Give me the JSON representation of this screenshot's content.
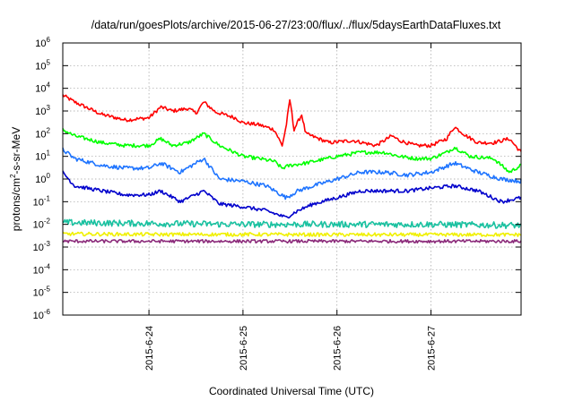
{
  "chart_data": {
    "type": "line",
    "title": "/data/run/goesPlots/archive/2015-06-27/23:00/flux/../flux/5daysEarthDataFluxes.txt",
    "xlabel": "Coordinated Universal Time (UTC)",
    "ylabel": {
      "pre": "protons/cm",
      "sup": "2",
      "post": "-s-sr-MeV"
    },
    "yscale": "log",
    "ylim_exp": [
      -6,
      6
    ],
    "ytick_base": "10",
    "yticks_exp": [
      "-6",
      "-5",
      "-4",
      "-3",
      "-2",
      "-1",
      "0",
      "1",
      "2",
      "3",
      "4",
      "5",
      "6"
    ],
    "xlim": [
      "2015-06-23 02:00",
      "2015-06-27 23:00"
    ],
    "xticks": [
      {
        "label": "2015-6-24",
        "time": "2015-06-24 00:00"
      },
      {
        "label": "2015-6-25",
        "time": "2015-06-25 00:00"
      },
      {
        "label": "2015-6-26",
        "time": "2015-06-26 00:00"
      },
      {
        "label": "2015-6-27",
        "time": "2015-06-27 00:00"
      }
    ],
    "grid": true,
    "legend": "none",
    "series": [
      {
        "color": "#ff0000",
        "noise": 0.08,
        "points": [
          [
            "2015-06-23 02:00",
            5000
          ],
          [
            "2015-06-23 05:00",
            2500
          ],
          [
            "2015-06-23 12:00",
            700
          ],
          [
            "2015-06-23 18:00",
            400
          ],
          [
            "2015-06-24 00:00",
            500
          ],
          [
            "2015-06-24 03:00",
            1500
          ],
          [
            "2015-06-24 06:00",
            1000
          ],
          [
            "2015-06-24 10:00",
            1300
          ],
          [
            "2015-06-24 12:00",
            800
          ],
          [
            "2015-06-24 14:00",
            2500
          ],
          [
            "2015-06-24 17:00",
            900
          ],
          [
            "2015-06-24 22:00",
            500
          ],
          [
            "2015-06-25 00:00",
            300
          ],
          [
            "2015-06-25 04:00",
            250
          ],
          [
            "2015-06-25 08:00",
            150
          ],
          [
            "2015-06-25 10:00",
            30
          ],
          [
            "2015-06-25 11:00",
            200
          ],
          [
            "2015-06-25 12:00",
            3500
          ],
          [
            "2015-06-25 13:00",
            150
          ],
          [
            "2015-06-25 15:00",
            700
          ],
          [
            "2015-06-25 16:00",
            100
          ],
          [
            "2015-06-25 22:00",
            40
          ],
          [
            "2015-06-26 04:00",
            50
          ],
          [
            "2015-06-26 10:00",
            30
          ],
          [
            "2015-06-26 14:00",
            80
          ],
          [
            "2015-06-26 16:00",
            50
          ],
          [
            "2015-06-26 20:00",
            30
          ],
          [
            "2015-06-27 00:00",
            30
          ],
          [
            "2015-06-27 04:00",
            60
          ],
          [
            "2015-06-27 06:00",
            200
          ],
          [
            "2015-06-27 09:00",
            80
          ],
          [
            "2015-06-27 12:00",
            40
          ],
          [
            "2015-06-27 16:00",
            40
          ],
          [
            "2015-06-27 20:00",
            60
          ],
          [
            "2015-06-27 23:00",
            15
          ]
        ]
      },
      {
        "color": "#00ff00",
        "noise": 0.08,
        "points": [
          [
            "2015-06-23 02:00",
            150
          ],
          [
            "2015-06-23 05:00",
            80
          ],
          [
            "2015-06-23 12:00",
            40
          ],
          [
            "2015-06-23 18:00",
            30
          ],
          [
            "2015-06-24 00:00",
            30
          ],
          [
            "2015-06-24 03:00",
            60
          ],
          [
            "2015-06-24 06:00",
            30
          ],
          [
            "2015-06-24 10:00",
            40
          ],
          [
            "2015-06-24 14:00",
            100
          ],
          [
            "2015-06-24 18:00",
            30
          ],
          [
            "2015-06-25 00:00",
            10
          ],
          [
            "2015-06-25 04:00",
            8
          ],
          [
            "2015-06-25 08:00",
            6
          ],
          [
            "2015-06-25 10:00",
            3
          ],
          [
            "2015-06-25 12:00",
            4
          ],
          [
            "2015-06-25 16:00",
            5
          ],
          [
            "2015-06-26 00:00",
            10
          ],
          [
            "2015-06-26 06:00",
            15
          ],
          [
            "2015-06-26 12:00",
            15
          ],
          [
            "2015-06-26 16:00",
            10
          ],
          [
            "2015-06-26 20:00",
            8
          ],
          [
            "2015-06-27 00:00",
            8
          ],
          [
            "2015-06-27 04:00",
            15
          ],
          [
            "2015-06-27 06:00",
            25
          ],
          [
            "2015-06-27 10:00",
            10
          ],
          [
            "2015-06-27 16:00",
            8
          ],
          [
            "2015-06-27 20:00",
            2
          ],
          [
            "2015-06-27 23:00",
            4
          ]
        ]
      },
      {
        "color": "#1e74ff",
        "noise": 0.09,
        "points": [
          [
            "2015-06-23 02:00",
            20
          ],
          [
            "2015-06-23 05:00",
            8
          ],
          [
            "2015-06-23 12:00",
            4
          ],
          [
            "2015-06-23 18:00",
            3
          ],
          [
            "2015-06-24 00:00",
            3
          ],
          [
            "2015-06-24 03:00",
            5
          ],
          [
            "2015-06-24 08:00",
            2
          ],
          [
            "2015-06-24 14:00",
            8
          ],
          [
            "2015-06-24 18:00",
            1
          ],
          [
            "2015-06-25 00:00",
            0.8
          ],
          [
            "2015-06-25 06:00",
            0.5
          ],
          [
            "2015-06-25 11:00",
            0.15
          ],
          [
            "2015-06-25 14:00",
            0.3
          ],
          [
            "2015-06-25 18:00",
            0.5
          ],
          [
            "2015-06-26 00:00",
            1
          ],
          [
            "2015-06-26 06:00",
            2
          ],
          [
            "2015-06-26 12:00",
            2
          ],
          [
            "2015-06-26 18:00",
            1.5
          ],
          [
            "2015-06-27 00:00",
            2
          ],
          [
            "2015-06-27 06:00",
            5
          ],
          [
            "2015-06-27 12:00",
            2
          ],
          [
            "2015-06-27 18:00",
            1
          ],
          [
            "2015-06-27 23:00",
            0.8
          ]
        ]
      },
      {
        "color": "#0000cc",
        "noise": 0.08,
        "points": [
          [
            "2015-06-23 02:00",
            2
          ],
          [
            "2015-06-23 05:00",
            0.5
          ],
          [
            "2015-06-23 12:00",
            0.3
          ],
          [
            "2015-06-23 18:00",
            0.2
          ],
          [
            "2015-06-24 00:00",
            0.2
          ],
          [
            "2015-06-24 03:00",
            0.3
          ],
          [
            "2015-06-24 08:00",
            0.1
          ],
          [
            "2015-06-24 14:00",
            0.3
          ],
          [
            "2015-06-24 18:00",
            0.08
          ],
          [
            "2015-06-25 00:00",
            0.06
          ],
          [
            "2015-06-25 06:00",
            0.04
          ],
          [
            "2015-06-25 11:00",
            0.02
          ],
          [
            "2015-06-25 14:00",
            0.04
          ],
          [
            "2015-06-25 18:00",
            0.08
          ],
          [
            "2015-06-26 00:00",
            0.15
          ],
          [
            "2015-06-26 06:00",
            0.3
          ],
          [
            "2015-06-26 12:00",
            0.3
          ],
          [
            "2015-06-26 18:00",
            0.3
          ],
          [
            "2015-06-27 00:00",
            0.4
          ],
          [
            "2015-06-27 06:00",
            0.5
          ],
          [
            "2015-06-27 12:00",
            0.3
          ],
          [
            "2015-06-27 18:00",
            0.1
          ],
          [
            "2015-06-27 23:00",
            0.15
          ]
        ]
      },
      {
        "color": "#19c1a0",
        "noise": 0.14,
        "points": [
          [
            "2015-06-23 02:00",
            0.012
          ],
          [
            "2015-06-24 00:00",
            0.011
          ],
          [
            "2015-06-25 00:00",
            0.01
          ],
          [
            "2015-06-26 00:00",
            0.01
          ],
          [
            "2015-06-27 00:00",
            0.01
          ],
          [
            "2015-06-27 23:00",
            0.009
          ]
        ]
      },
      {
        "color": "#f0f000",
        "noise": 0.08,
        "points": [
          [
            "2015-06-23 02:00",
            0.0038
          ],
          [
            "2015-06-24 00:00",
            0.0036
          ],
          [
            "2015-06-25 00:00",
            0.0036
          ],
          [
            "2015-06-26 00:00",
            0.0035
          ],
          [
            "2015-06-27 00:00",
            0.0035
          ],
          [
            "2015-06-27 23:00",
            0.0035
          ]
        ]
      },
      {
        "color": "#8b2a7a",
        "noise": 0.07,
        "points": [
          [
            "2015-06-23 02:00",
            0.0018
          ],
          [
            "2015-06-24 00:00",
            0.0018
          ],
          [
            "2015-06-25 00:00",
            0.0018
          ],
          [
            "2015-06-26 00:00",
            0.0018
          ],
          [
            "2015-06-27 00:00",
            0.0018
          ],
          [
            "2015-06-27 23:00",
            0.0018
          ]
        ]
      }
    ]
  }
}
